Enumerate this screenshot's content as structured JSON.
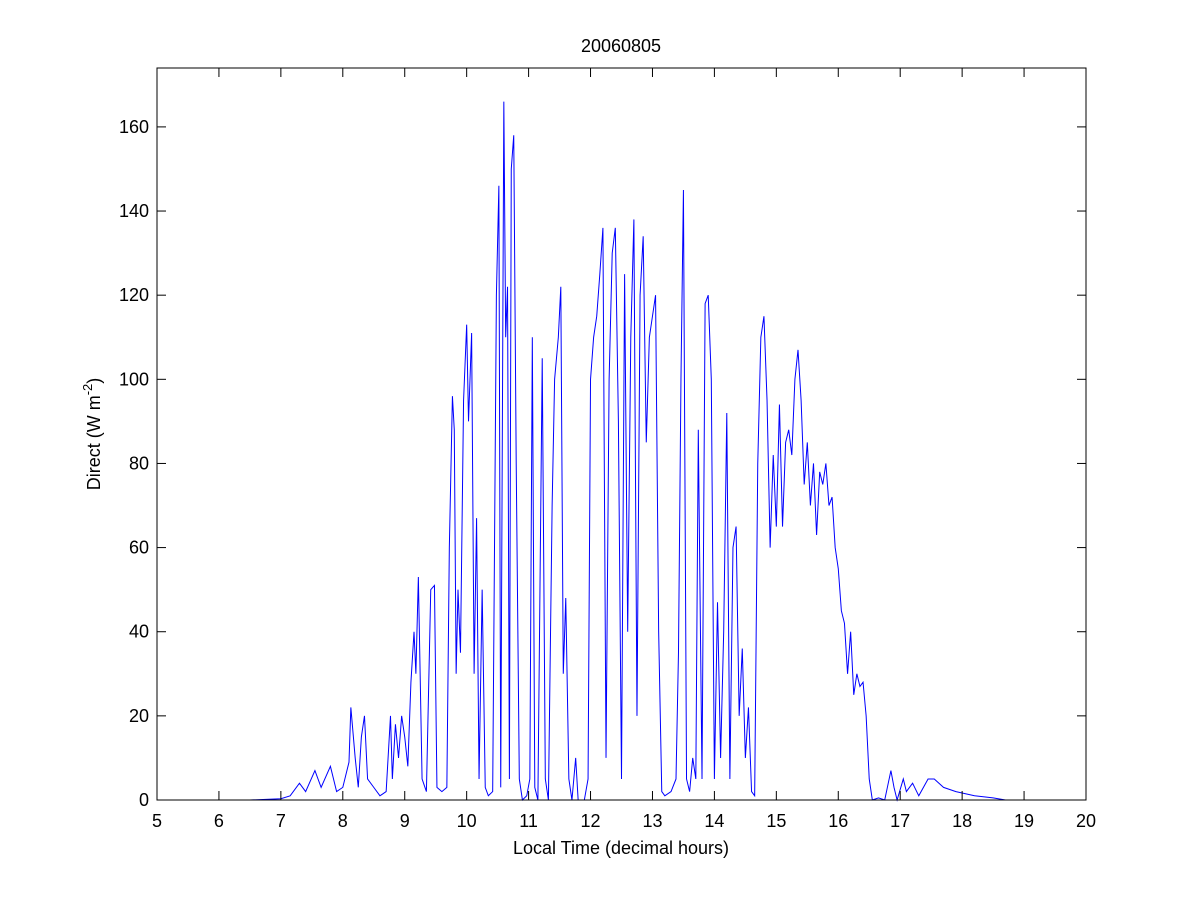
{
  "chart_data": {
    "type": "line",
    "title": "20060805",
    "xlabel": "Local Time (decimal hours)",
    "ylabel": {
      "text": "Direct (W m",
      "superscript": "-2",
      "close": ")"
    },
    "color": "#0000ff",
    "xlim": [
      5,
      20
    ],
    "xticks": [
      5,
      6,
      7,
      8,
      9,
      10,
      11,
      12,
      13,
      14,
      15,
      16,
      17,
      18,
      19,
      20
    ],
    "ylim": [
      0,
      174
    ],
    "yticks": [
      0,
      20,
      40,
      60,
      80,
      100,
      120,
      140,
      160
    ],
    "x": [
      5.7,
      6.5,
      7.0,
      7.15,
      7.3,
      7.4,
      7.55,
      7.65,
      7.8,
      7.9,
      8.0,
      8.1,
      8.13,
      8.2,
      8.25,
      8.3,
      8.35,
      8.4,
      8.5,
      8.6,
      8.7,
      8.77,
      8.8,
      8.85,
      8.9,
      8.95,
      9.0,
      9.05,
      9.1,
      9.15,
      9.18,
      9.22,
      9.28,
      9.35,
      9.42,
      9.48,
      9.52,
      9.6,
      9.68,
      9.72,
      9.77,
      9.8,
      9.83,
      9.86,
      9.9,
      9.95,
      10.0,
      10.03,
      10.08,
      10.12,
      10.16,
      10.2,
      10.25,
      10.3,
      10.35,
      10.42,
      10.48,
      10.52,
      10.55,
      10.6,
      10.63,
      10.66,
      10.69,
      10.72,
      10.76,
      10.8,
      10.85,
      10.9,
      10.97,
      11.02,
      11.06,
      11.1,
      11.15,
      11.22,
      11.27,
      11.32,
      11.38,
      11.42,
      11.48,
      11.52,
      11.56,
      11.6,
      11.65,
      11.7,
      11.76,
      11.8,
      11.9,
      11.96,
      12.0,
      12.05,
      12.1,
      12.15,
      12.2,
      12.25,
      12.3,
      12.35,
      12.4,
      12.45,
      12.5,
      12.55,
      12.6,
      12.65,
      12.7,
      12.75,
      12.8,
      12.85,
      12.9,
      12.95,
      13.0,
      13.05,
      13.1,
      13.15,
      13.2,
      13.3,
      13.38,
      13.42,
      13.46,
      13.5,
      13.55,
      13.6,
      13.65,
      13.7,
      13.74,
      13.8,
      13.85,
      13.9,
      13.95,
      14.0,
      14.05,
      14.1,
      14.15,
      14.2,
      14.25,
      14.3,
      14.35,
      14.4,
      14.45,
      14.5,
      14.55,
      14.6,
      14.65,
      14.7,
      14.75,
      14.8,
      14.85,
      14.9,
      14.95,
      15.0,
      15.05,
      15.1,
      15.15,
      15.2,
      15.25,
      15.3,
      15.35,
      15.4,
      15.45,
      15.5,
      15.55,
      15.6,
      15.65,
      15.7,
      15.75,
      15.8,
      15.85,
      15.9,
      15.95,
      16.0,
      16.05,
      16.1,
      16.15,
      16.2,
      16.25,
      16.3,
      16.35,
      16.4,
      16.45,
      16.5,
      16.55,
      16.65,
      16.75,
      16.85,
      16.9,
      16.95,
      17.05,
      17.1,
      17.2,
      17.3,
      17.45,
      17.55,
      17.7,
      17.9,
      18.2,
      18.5,
      18.7
    ],
    "values": [
      0,
      0,
      0.3,
      1,
      4,
      2,
      7,
      3,
      8,
      2,
      3,
      9,
      22,
      10,
      3,
      15,
      20,
      5,
      3,
      1,
      2,
      20,
      5,
      18,
      10,
      20,
      15,
      8,
      28,
      40,
      30,
      53,
      5,
      2,
      50,
      51,
      3,
      2,
      3,
      60,
      96,
      88,
      30,
      50,
      35,
      95,
      113,
      90,
      111,
      30,
      67,
      5,
      50,
      3,
      1,
      2,
      120,
      146,
      3,
      166,
      110,
      122,
      5,
      150,
      158,
      80,
      5,
      0,
      1,
      5,
      110,
      3,
      0,
      105,
      5,
      0,
      70,
      100,
      110,
      122,
      30,
      48,
      5,
      0,
      10,
      0,
      0,
      5,
      100,
      110,
      115,
      125,
      136,
      10,
      100,
      130,
      136,
      90,
      5,
      125,
      40,
      110,
      138,
      20,
      120,
      134,
      85,
      110,
      115,
      120,
      40,
      2,
      1,
      2,
      5,
      35,
      100,
      145,
      5,
      2,
      10,
      5,
      88,
      5,
      118,
      120,
      100,
      5,
      47,
      10,
      40,
      92,
      5,
      60,
      65,
      20,
      36,
      10,
      22,
      2,
      1,
      80,
      110,
      115,
      95,
      60,
      82,
      65,
      94,
      65,
      85,
      88,
      82,
      100,
      107,
      95,
      75,
      85,
      70,
      80,
      63,
      78,
      75,
      80,
      70,
      72,
      60,
      55,
      45,
      42,
      30,
      40,
      25,
      30,
      27,
      28,
      20,
      5,
      0,
      0.5,
      0,
      7,
      3,
      0,
      5,
      2,
      4,
      1,
      5,
      5,
      3,
      2,
      1,
      0.5,
      0
    ]
  }
}
